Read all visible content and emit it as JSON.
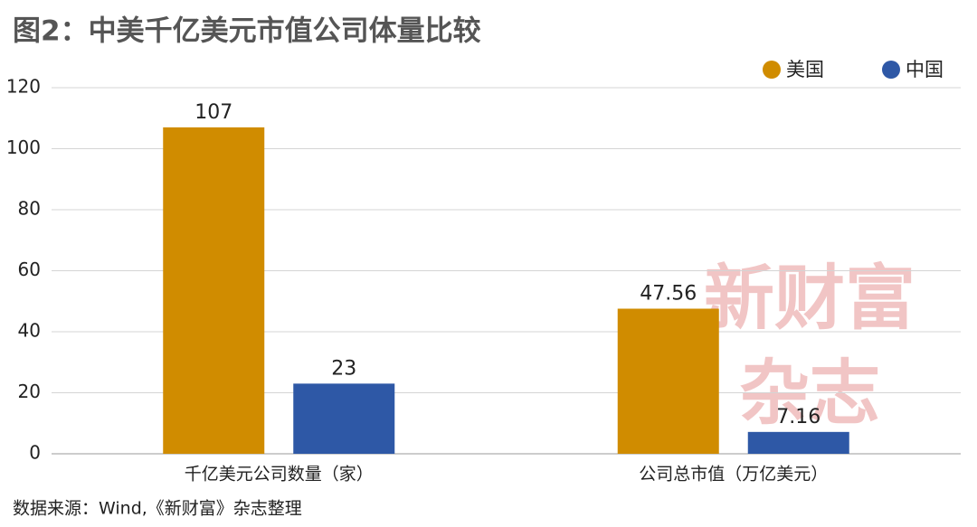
{
  "chart_data": {
    "type": "bar",
    "title": "图2：中美千亿美元市值公司体量比较",
    "categories": [
      "千亿美元公司数量（家）",
      "公司总市值（万亿美元）"
    ],
    "series": [
      {
        "name": "美国",
        "color": "#d08c00",
        "values": [
          107,
          47.56
        ]
      },
      {
        "name": "中国",
        "color": "#2e58a6",
        "values": [
          23,
          7.16
        ]
      }
    ],
    "ylim": [
      0,
      120
    ],
    "yticks": [
      0,
      20,
      40,
      60,
      80,
      100,
      120
    ],
    "grid": true,
    "legend": "top-right",
    "source": "数据来源：Wind,《新财富》杂志整理",
    "watermark": [
      "新财富",
      "杂志"
    ]
  }
}
